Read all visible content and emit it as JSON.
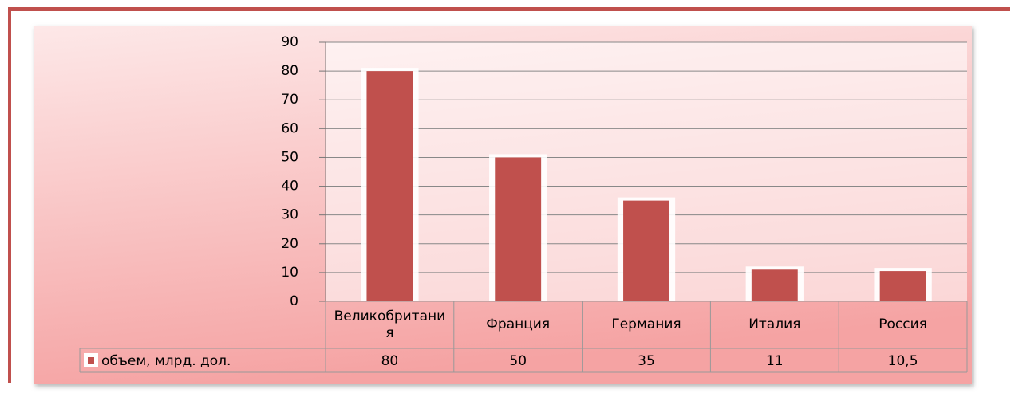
{
  "chart_data": {
    "type": "bar",
    "categories": [
      "Великобритания",
      "Франция",
      "Германия",
      "Италия",
      "Россия"
    ],
    "series": [
      {
        "name": "объем, млрд. дол.",
        "color": "#c0504d",
        "values": [
          80,
          50,
          35,
          11,
          10.5
        ],
        "value_labels": [
          "80",
          "50",
          "35",
          "11",
          "10,5"
        ]
      }
    ],
    "ylim": [
      0,
      90
    ],
    "yticks": [
      0,
      10,
      20,
      30,
      40,
      50,
      60,
      70,
      80,
      90
    ],
    "grid": true,
    "legend": "bottom"
  }
}
